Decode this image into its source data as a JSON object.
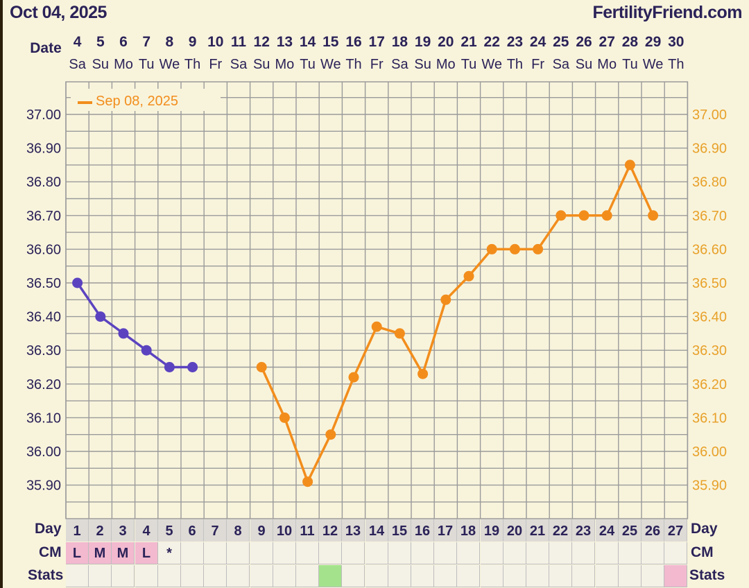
{
  "header": {
    "date": "Oct 04, 2025",
    "site": "FertilityFriend.com"
  },
  "chart_data": {
    "type": "line",
    "date_label": "Date",
    "dates": [
      "4",
      "5",
      "6",
      "7",
      "8",
      "9",
      "10",
      "11",
      "12",
      "13",
      "14",
      "15",
      "16",
      "17",
      "18",
      "19",
      "20",
      "21",
      "22",
      "23",
      "24",
      "25",
      "26",
      "27",
      "28",
      "29",
      "30"
    ],
    "weekdays": [
      "Sa",
      "Su",
      "Mo",
      "Tu",
      "We",
      "Th",
      "Fr",
      "Sa",
      "Su",
      "Mo",
      "Tu",
      "We",
      "Th",
      "Fr",
      "Sa",
      "Su",
      "Mo",
      "Tu",
      "We",
      "Th",
      "Fr",
      "Sa",
      "Su",
      "Mo",
      "Tu",
      "We",
      "Th"
    ],
    "yticks": [
      "37.00",
      "36.90",
      "36.80",
      "36.70",
      "36.60",
      "36.50",
      "36.40",
      "36.30",
      "36.20",
      "36.10",
      "36.00",
      "35.90"
    ],
    "ylim": [
      35.85,
      37.1
    ],
    "legend": {
      "label": "Sep 08, 2025",
      "position": "top-left"
    },
    "series": [
      {
        "name": "",
        "color": "#5b43c0",
        "values": [
          36.5,
          36.4,
          36.35,
          36.3,
          36.25,
          36.25,
          null,
          null,
          null,
          null,
          null,
          null,
          null,
          null,
          null,
          null,
          null,
          null,
          null,
          null,
          null,
          null,
          null,
          null,
          null,
          null,
          null
        ]
      },
      {
        "name": "Sep 08, 2025",
        "color": "#f28d1c",
        "values": [
          null,
          null,
          null,
          null,
          null,
          null,
          null,
          null,
          36.25,
          36.1,
          35.91,
          36.05,
          36.22,
          36.37,
          36.35,
          36.23,
          36.45,
          36.52,
          36.6,
          36.6,
          36.6,
          36.7,
          36.7,
          36.7,
          36.85,
          36.7,
          null
        ]
      }
    ],
    "day_label": "Day",
    "days": [
      "1",
      "2",
      "3",
      "4",
      "5",
      "6",
      "7",
      "8",
      "9",
      "10",
      "11",
      "12",
      "13",
      "14",
      "15",
      "16",
      "17",
      "18",
      "19",
      "20",
      "21",
      "22",
      "23",
      "24",
      "25",
      "26",
      "27"
    ],
    "cm_label": "CM",
    "cm": [
      "L",
      "M",
      "M",
      "L",
      "*",
      "",
      "",
      "",
      "",
      "",
      "",
      "",
      "",
      "",
      "",
      "",
      "",
      "",
      "",
      "",
      "",
      "",
      "",
      "",
      "",
      "",
      ""
    ],
    "stats_label": "Stats",
    "stats": [
      "",
      "",
      "",
      "",
      "",
      "",
      "",
      "",
      "",
      "",
      "",
      "green",
      "",
      "",
      "",
      "",
      "",
      "",
      "",
      "",
      "",
      "",
      "",
      "",
      "",
      "",
      "pink"
    ]
  }
}
